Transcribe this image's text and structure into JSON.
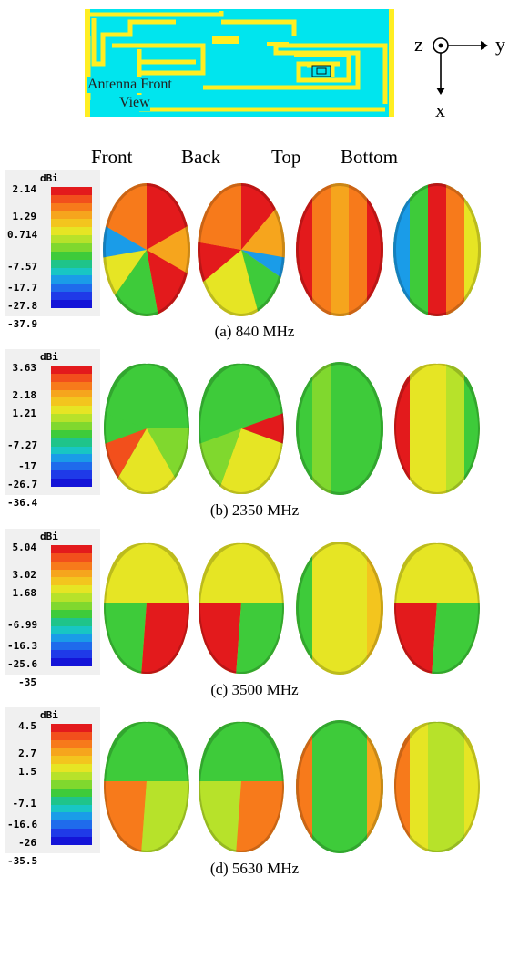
{
  "antenna": {
    "label_line1": "Antenna Front",
    "label_line2": "View",
    "colors": {
      "background": "#00e5ee",
      "metal": "#ffee22"
    }
  },
  "axes": {
    "z": "z",
    "y": "y",
    "x": "x"
  },
  "views": [
    "Front",
    "Back",
    "Top",
    "Bottom"
  ],
  "colorbar_unit": "dBi",
  "colorbar_colors": [
    "#e31a1c",
    "#f24f1c",
    "#f77a1b",
    "#f6a51d",
    "#f3c51e",
    "#e6e524",
    "#b7e22a",
    "#80d82e",
    "#3ecb3a",
    "#1fc48a",
    "#18c6c4",
    "#1a9ce8",
    "#1f6bec",
    "#1f3ae8",
    "#1414d8"
  ],
  "panels": [
    {
      "caption": "(a) 840 MHz",
      "ticks": [
        "2.14",
        "1.29",
        "0.714",
        "-7.57",
        "-17.7",
        "-27.8",
        "-37.9"
      ]
    },
    {
      "caption": "(b) 2350 MHz",
      "ticks": [
        "3.63",
        "2.18",
        "1.21",
        "-7.27",
        "-17",
        "-26.7",
        "-36.4"
      ]
    },
    {
      "caption": "(c) 3500 MHz",
      "ticks": [
        "5.04",
        "3.02",
        "1.68",
        "-6.99",
        "-16.3",
        "-25.6",
        "-35"
      ]
    },
    {
      "caption": "(d) 5630 MHz",
      "ticks": [
        "4.5",
        "2.7",
        "1.5",
        "-7.1",
        "-16.6",
        "-26",
        "-35.5"
      ]
    }
  ]
}
